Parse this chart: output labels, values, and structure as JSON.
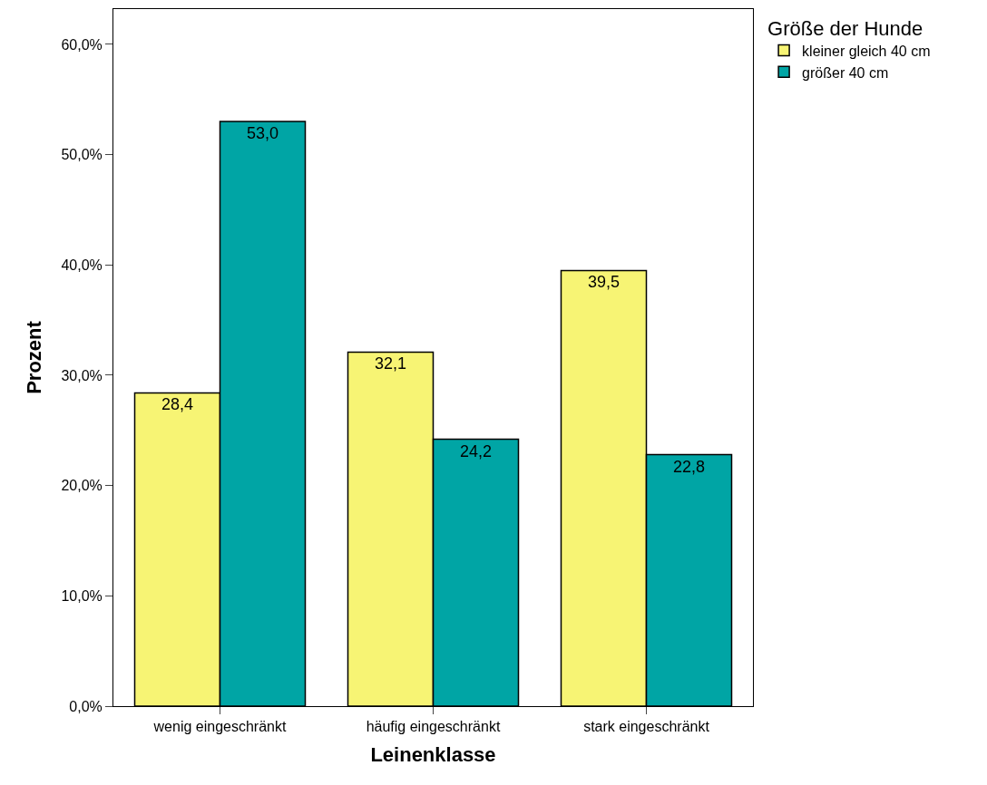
{
  "chart_data": {
    "type": "bar",
    "xlabel": "Leinenklasse",
    "ylabel": "Prozent",
    "legend_title": "Größe der Hunde",
    "legend": "top right",
    "categories": [
      "wenig eingeschränkt",
      "häufig eingeschränkt",
      "stark eingeschränkt"
    ],
    "series": [
      {
        "name": "kleiner gleich 40 cm",
        "color": "#f7f474",
        "values": [
          28.4,
          32.1,
          39.5
        ],
        "value_labels": [
          "28,4",
          "32,1",
          "39,5"
        ]
      },
      {
        "name": "größer 40 cm",
        "color": "#00a5a5",
        "values": [
          53.0,
          24.2,
          22.8
        ],
        "value_labels": [
          "53,0",
          "24,2",
          "22,8"
        ]
      }
    ],
    "ylim": [
      0,
      63.2
    ],
    "yticks": [
      {
        "value": 0,
        "label": "0,0%"
      },
      {
        "value": 10,
        "label": "10,0%"
      },
      {
        "value": 20,
        "label": "20,0%"
      },
      {
        "value": 30,
        "label": "30,0%"
      },
      {
        "value": 40,
        "label": "40,0%"
      },
      {
        "value": 50,
        "label": "50,0%"
      },
      {
        "value": 60,
        "label": "60,0%"
      }
    ]
  }
}
